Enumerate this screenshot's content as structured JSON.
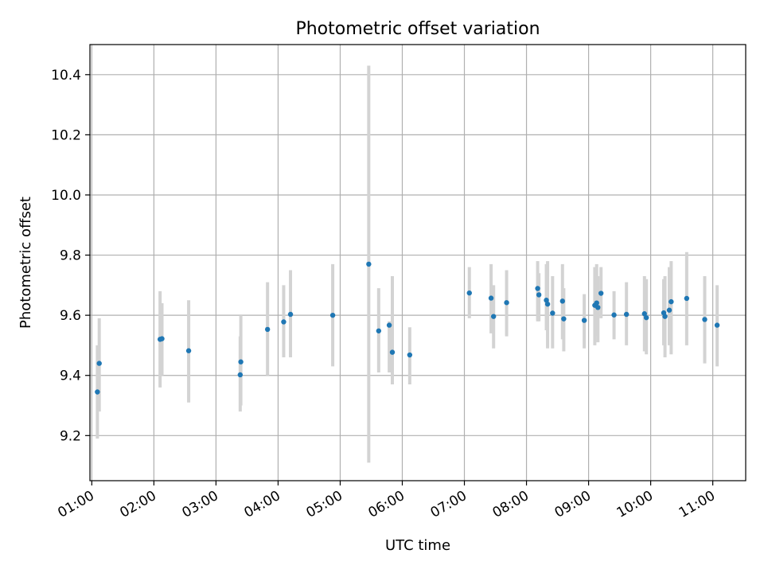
{
  "chart_data": {
    "type": "scatter",
    "title": "Photometric offset variation",
    "xlabel": "UTC time",
    "ylabel": "Photometric offset",
    "x_unit": "hours UTC",
    "xlim": [
      0.97,
      11.53
    ],
    "ylim": [
      9.05,
      10.5
    ],
    "x_ticks": [
      1,
      2,
      3,
      4,
      5,
      6,
      7,
      8,
      9,
      10,
      11
    ],
    "x_tick_labels": [
      "01:00",
      "02:00",
      "03:00",
      "04:00",
      "05:00",
      "06:00",
      "07:00",
      "08:00",
      "09:00",
      "10:00",
      "11:00"
    ],
    "y_ticks": [
      9.2,
      9.4,
      9.6,
      9.8,
      10.0,
      10.2,
      10.4
    ],
    "y_tick_labels": [
      "9.2",
      "9.4",
      "9.6",
      "9.8",
      "10.0",
      "10.2",
      "10.4"
    ],
    "grid": true,
    "colors": {
      "points": "#1f77b4",
      "error_bars": "#d3d3d3"
    },
    "series": [
      {
        "x": [
          1.09,
          1.12,
          2.1,
          2.13,
          2.56,
          3.39,
          3.4,
          3.83,
          4.09,
          4.2,
          4.88,
          5.46,
          5.62,
          5.79,
          5.84,
          6.12,
          7.08,
          7.43,
          7.47,
          7.68,
          8.18,
          8.2,
          8.32,
          8.34,
          8.42,
          8.58,
          8.6,
          8.93,
          9.1,
          9.13,
          9.15,
          9.2,
          9.41,
          9.61,
          9.9,
          9.93,
          10.21,
          10.23,
          10.3,
          10.33,
          10.58,
          10.87,
          11.07
        ],
        "y": [
          9.345,
          9.44,
          9.52,
          9.522,
          9.482,
          9.402,
          9.445,
          9.553,
          9.578,
          9.603,
          9.6,
          9.77,
          9.548,
          9.567,
          9.477,
          9.468,
          9.674,
          9.657,
          9.596,
          9.642,
          9.689,
          9.668,
          9.65,
          9.637,
          9.607,
          9.647,
          9.588,
          9.583,
          9.633,
          9.641,
          9.626,
          9.673,
          9.601,
          9.603,
          9.605,
          9.592,
          9.608,
          9.596,
          9.617,
          9.645,
          9.656,
          9.586,
          9.567
        ],
        "err_lo": [
          9.19,
          9.28,
          9.36,
          9.4,
          9.31,
          9.28,
          9.3,
          9.4,
          9.46,
          9.46,
          9.43,
          9.11,
          9.41,
          9.41,
          9.37,
          9.37,
          9.59,
          9.54,
          9.49,
          9.53,
          9.58,
          9.58,
          9.55,
          9.49,
          9.49,
          9.52,
          9.48,
          9.49,
          9.5,
          9.53,
          9.51,
          9.59,
          9.52,
          9.5,
          9.48,
          9.47,
          9.5,
          9.46,
          9.5,
          9.47,
          9.5,
          9.44,
          9.43
        ],
        "err_hi": [
          9.5,
          9.59,
          9.68,
          9.64,
          9.65,
          9.53,
          9.6,
          9.71,
          9.7,
          9.75,
          9.77,
          10.43,
          9.69,
          9.58,
          9.73,
          9.56,
          9.76,
          9.77,
          9.7,
          9.75,
          9.78,
          9.74,
          9.77,
          9.78,
          9.73,
          9.77,
          9.69,
          9.67,
          9.76,
          9.77,
          9.73,
          9.76,
          9.68,
          9.71,
          9.73,
          9.72,
          9.72,
          9.73,
          9.76,
          9.78,
          9.81,
          9.73,
          9.7
        ]
      }
    ]
  }
}
